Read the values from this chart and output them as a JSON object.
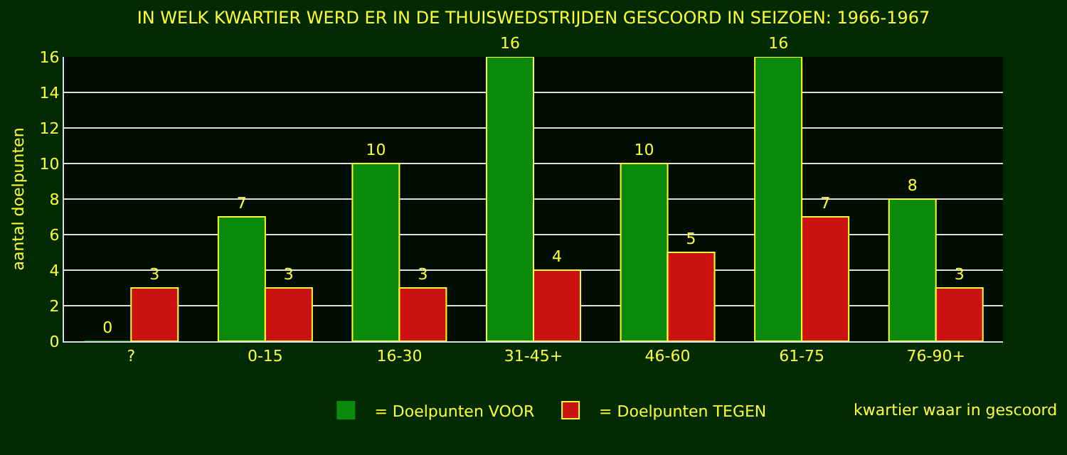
{
  "chart_data": {
    "type": "bar",
    "title": "IN WELK KWARTIER WERD ER IN DE THUISWEDSTRIJDEN GESCOORD IN SEIZOEN: 1966-1967",
    "xlabel": "kwartier waar in gescoord",
    "ylabel": "aantal doelpunten",
    "categories": [
      "?",
      "0-15",
      "16-30",
      "31-45+",
      "46-60",
      "61-75",
      "76-90+"
    ],
    "series": [
      {
        "name": "= Doelpunten VOOR",
        "color": "#0a8a0a",
        "values": [
          0,
          7,
          10,
          16,
          10,
          16,
          8
        ]
      },
      {
        "name": "= Doelpunten TEGEN",
        "color": "#cc1111",
        "values": [
          3,
          3,
          3,
          4,
          5,
          7,
          3
        ]
      }
    ],
    "ylim": [
      0,
      16
    ],
    "yticks": [
      0,
      2,
      4,
      6,
      8,
      10,
      12,
      14,
      16
    ],
    "grid": "y",
    "legend": "bottom",
    "data_labels": true
  }
}
